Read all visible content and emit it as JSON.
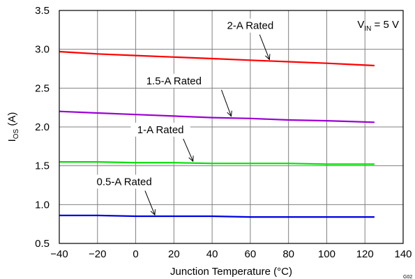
{
  "chart_data": {
    "type": "line",
    "xlabel": "Junction Temperature (°C)",
    "ylabel": {
      "main": "I",
      "sub": "OS",
      "unit": " (A)"
    },
    "xlim": [
      -40,
      140
    ],
    "ylim": [
      0.5,
      3.5
    ],
    "x_ticks": [
      -40,
      -20,
      0,
      20,
      40,
      60,
      80,
      100,
      120,
      140
    ],
    "x_tick_labels": [
      "−40",
      "−20",
      "0",
      "20",
      "40",
      "60",
      "80",
      "100",
      "120",
      "140"
    ],
    "y_ticks": [
      0.5,
      1.0,
      1.5,
      2.0,
      2.5,
      3.0,
      3.5
    ],
    "y_tick_labels": [
      "0.5",
      "1.0",
      "1.5",
      "2.0",
      "2.5",
      "3.0",
      "3.5"
    ],
    "grid": true,
    "legend": "none",
    "condition": {
      "main": "V",
      "sub": "IN",
      "rest": " = 5 V"
    },
    "figure_id": "G02",
    "series": [
      {
        "name": "2-A Rated",
        "color": "#ff0000",
        "x": [
          -40,
          -20,
          0,
          20,
          40,
          60,
          80,
          100,
          125
        ],
        "y": [
          2.97,
          2.94,
          2.92,
          2.9,
          2.88,
          2.86,
          2.84,
          2.82,
          2.79
        ],
        "label_at": [
          60,
          3.26
        ],
        "arrow_to": [
          70,
          2.85
        ]
      },
      {
        "name": "1.5-A Rated",
        "color": "#9b00d3",
        "x": [
          -40,
          -20,
          0,
          20,
          40,
          60,
          80,
          100,
          125
        ],
        "y": [
          2.2,
          2.18,
          2.16,
          2.14,
          2.12,
          2.11,
          2.09,
          2.08,
          2.06
        ],
        "label_at": [
          20,
          2.55
        ],
        "arrow_to": [
          50,
          2.12
        ]
      },
      {
        "name": "1-A Rated",
        "color": "#00e000",
        "x": [
          -40,
          -20,
          0,
          20,
          40,
          60,
          80,
          100,
          125
        ],
        "y": [
          1.55,
          1.55,
          1.54,
          1.54,
          1.53,
          1.53,
          1.53,
          1.52,
          1.52
        ],
        "label_at": [
          13,
          1.92
        ],
        "arrow_to": [
          30,
          1.54
        ]
      },
      {
        "name": "0.5-A Rated",
        "color": "#0000e0",
        "x": [
          -40,
          -20,
          0,
          20,
          40,
          60,
          80,
          100,
          125
        ],
        "y": [
          0.86,
          0.86,
          0.85,
          0.85,
          0.85,
          0.84,
          0.84,
          0.84,
          0.84
        ],
        "label_at": [
          -6,
          1.25
        ],
        "arrow_to": [
          10,
          0.85
        ]
      }
    ]
  }
}
